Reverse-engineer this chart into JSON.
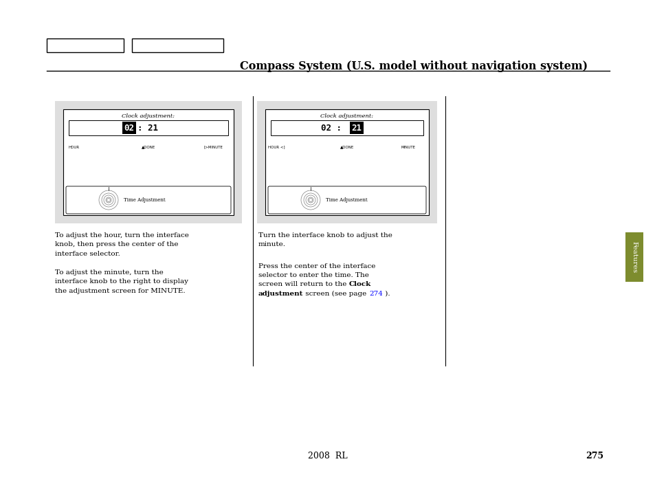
{
  "title": "Compass System (U.S. model without navigation system)",
  "title_fontsize": 11.5,
  "page_number": "275",
  "model_line": "2008  RL",
  "bg_color": "#ffffff",
  "tab_color": "#7d8c2e",
  "section_label": "Features",
  "panel_bg": "#dedede",
  "left_screen_title": "Clock adjustment:",
  "right_screen_title": "Clock adjustment:",
  "left_labels": [
    "HOUR",
    "▲DONE",
    "[>MINUTE"
  ],
  "right_labels": [
    "HOUR <]",
    "▲DONE",
    "MINUTE"
  ],
  "knob_label": "Time Adjustment",
  "left_text": [
    [
      "To adjust the hour, turn the interface",
      false
    ],
    [
      "knob, then press the center of the",
      false
    ],
    [
      "interface selector.",
      false
    ],
    [
      "",
      false
    ],
    [
      "To adjust the minute, turn the",
      false
    ],
    [
      "interface knob to the right to display",
      false
    ],
    [
      "the adjustment screen for MINUTE.",
      false
    ]
  ],
  "right_para1": "Turn the interface knob to adjust the\nminute.",
  "right_para2_lines": [
    [
      [
        "Press the center of the interface",
        false
      ]
    ],
    [
      [
        "selector to enter the time. The",
        false
      ]
    ],
    [
      [
        "screen will return to the ",
        false
      ],
      [
        "Clock",
        true
      ]
    ],
    [
      [
        "adjustment",
        true
      ],
      [
        " screen (see page ",
        false
      ],
      [
        "274",
        "blue"
      ],
      [
        " ).",
        false
      ]
    ]
  ]
}
